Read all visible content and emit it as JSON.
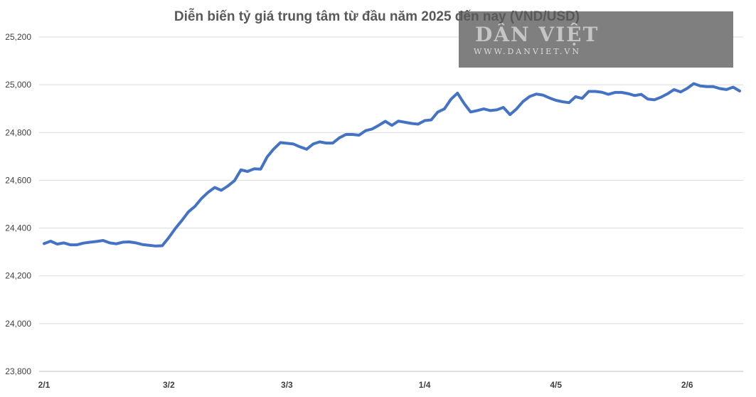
{
  "chart_data": {
    "type": "line",
    "title": "Diễn biến tỷ giá trung tâm từ đầu năm 2025 đến nay (VND/USD)",
    "xlabel": "",
    "ylabel": "",
    "ylim": [
      23800,
      25200
    ],
    "yticks": [
      23800,
      24000,
      24200,
      24400,
      24600,
      24800,
      25000,
      25200
    ],
    "ytick_labels": [
      "23,800",
      "24,000",
      "24,200",
      "24,400",
      "24,600",
      "24,800",
      "25,000",
      "25,200"
    ],
    "xtick_labels": [
      {
        "label": "2/1",
        "index": 0
      },
      {
        "label": "3/2",
        "index": 19
      },
      {
        "label": "3/3",
        "index": 37
      },
      {
        "label": "1/4",
        "index": 58
      },
      {
        "label": "4/5",
        "index": 78
      },
      {
        "label": "2/6",
        "index": 98
      }
    ],
    "grid": true,
    "legend": "none",
    "series": [
      {
        "color": "#4472c4",
        "values": [
          24335,
          24345,
          24333,
          24338,
          24330,
          24330,
          24337,
          24341,
          24344,
          24348,
          24338,
          24334,
          24341,
          24342,
          24338,
          24331,
          24328,
          24325,
          24326,
          24360,
          24398,
          24432,
          24468,
          24491,
          24524,
          24550,
          24570,
          24558,
          24576,
          24598,
          24644,
          24637,
          24648,
          24647,
          24698,
          24731,
          24758,
          24755,
          24752,
          24740,
          24730,
          24752,
          24761,
          24756,
          24756,
          24778,
          24792,
          24792,
          24789,
          24808,
          24815,
          24830,
          24847,
          24830,
          24848,
          24843,
          24838,
          24835,
          24850,
          24853,
          24886,
          24899,
          24939,
          24965,
          24922,
          24886,
          24892,
          24899,
          24892,
          24895,
          24905,
          24875,
          24899,
          24930,
          24951,
          24961,
          24957,
          24945,
          24935,
          24929,
          24925,
          24950,
          24943,
          24972,
          24972,
          24969,
          24960,
          24968,
          24968,
          24963,
          24955,
          24960,
          24940,
          24937,
          24948,
          24962,
          24980,
          24970,
          24985,
          25005,
          24995,
          24992,
          24992,
          24984,
          24980,
          24990,
          24974
        ]
      }
    ]
  },
  "watermark": {
    "brand": "DÂN VIỆT",
    "url": "WWW.DANVIET.VN",
    "panel_color": "#7f7f7f"
  }
}
